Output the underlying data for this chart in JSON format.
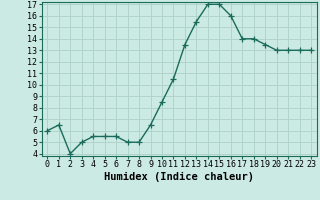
{
  "xlabel": "Humidex (Indice chaleur)",
  "x": [
    0,
    1,
    2,
    3,
    4,
    5,
    6,
    7,
    8,
    9,
    10,
    11,
    12,
    13,
    14,
    15,
    16,
    17,
    18,
    19,
    20,
    21,
    22,
    23
  ],
  "y": [
    6.0,
    6.5,
    4.0,
    5.0,
    5.5,
    5.5,
    5.5,
    5.0,
    5.0,
    6.5,
    8.5,
    10.5,
    13.5,
    15.5,
    17.0,
    17.0,
    16.0,
    14.0,
    14.0,
    13.5,
    13.0,
    13.0,
    13.0,
    13.0
  ],
  "line_color": "#1a6b5a",
  "marker": "+",
  "marker_size": 4,
  "bg_color": "#cceae4",
  "grid_color": "#b0d4cc",
  "ylim": [
    4,
    17
  ],
  "xlim": [
    -0.5,
    23.5
  ],
  "yticks": [
    4,
    5,
    6,
    7,
    8,
    9,
    10,
    11,
    12,
    13,
    14,
    15,
    16,
    17
  ],
  "xticks": [
    0,
    1,
    2,
    3,
    4,
    5,
    6,
    7,
    8,
    9,
    10,
    11,
    12,
    13,
    14,
    15,
    16,
    17,
    18,
    19,
    20,
    21,
    22,
    23
  ],
  "tick_fontsize": 6,
  "xlabel_fontsize": 7.5,
  "line_width": 1.0,
  "marker_edge_width": 0.9
}
